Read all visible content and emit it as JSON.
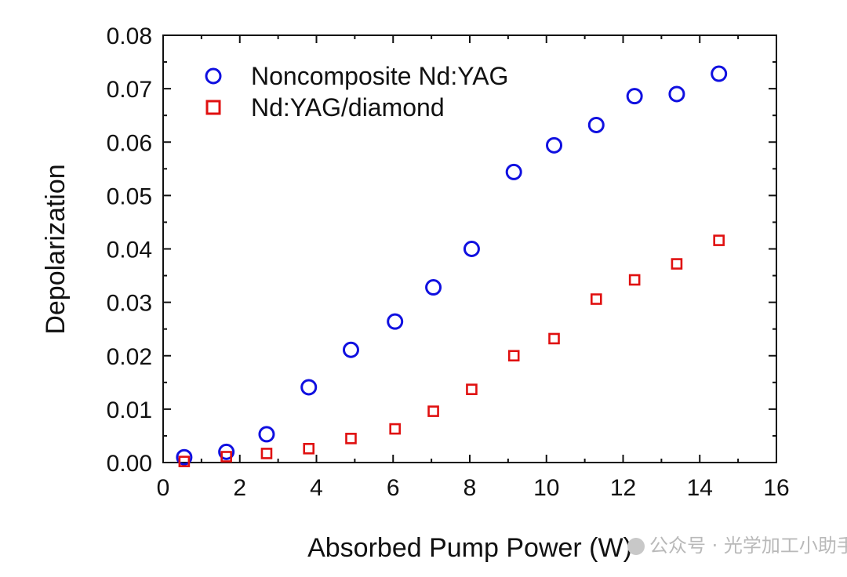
{
  "chart_data": {
    "type": "scatter",
    "title": "",
    "xlabel": "Absorbed Pump Power (W)",
    "ylabel": "Depolarization",
    "xlim": [
      0,
      16
    ],
    "ylim": [
      0,
      0.08
    ],
    "x_ticks": [
      "0",
      "2",
      "4",
      "6",
      "8",
      "10",
      "12",
      "14",
      "16"
    ],
    "y_ticks": [
      "0.00",
      "0.01",
      "0.02",
      "0.03",
      "0.04",
      "0.05",
      "0.06",
      "0.07",
      "0.08"
    ],
    "legend_position": "top-left",
    "grid": false,
    "series": [
      {
        "name": "Noncomposite Nd:YAG",
        "marker": "circle",
        "color": "#1010e0",
        "x": [
          0.55,
          1.65,
          2.7,
          3.8,
          4.9,
          6.05,
          7.05,
          8.05,
          9.15,
          10.2,
          11.3,
          12.3,
          13.4,
          14.5
        ],
        "y": [
          0.001,
          0.002,
          0.0053,
          0.0141,
          0.0211,
          0.0264,
          0.0328,
          0.04,
          0.0544,
          0.0594,
          0.0632,
          0.0686,
          0.069,
          0.0728
        ]
      },
      {
        "name": "Nd:YAG/diamond",
        "marker": "square",
        "color": "#e01010",
        "x": [
          0.55,
          1.65,
          2.7,
          3.8,
          4.9,
          6.05,
          7.05,
          8.05,
          9.15,
          10.2,
          11.3,
          12.3,
          13.4,
          14.5
        ],
        "y": [
          0.0002,
          0.0011,
          0.0017,
          0.0026,
          0.0045,
          0.0063,
          0.0096,
          0.0137,
          0.02,
          0.0232,
          0.0306,
          0.0342,
          0.0372,
          0.0416
        ]
      }
    ]
  },
  "watermark": {
    "text": "公众号 · 光学加工小助手"
  }
}
